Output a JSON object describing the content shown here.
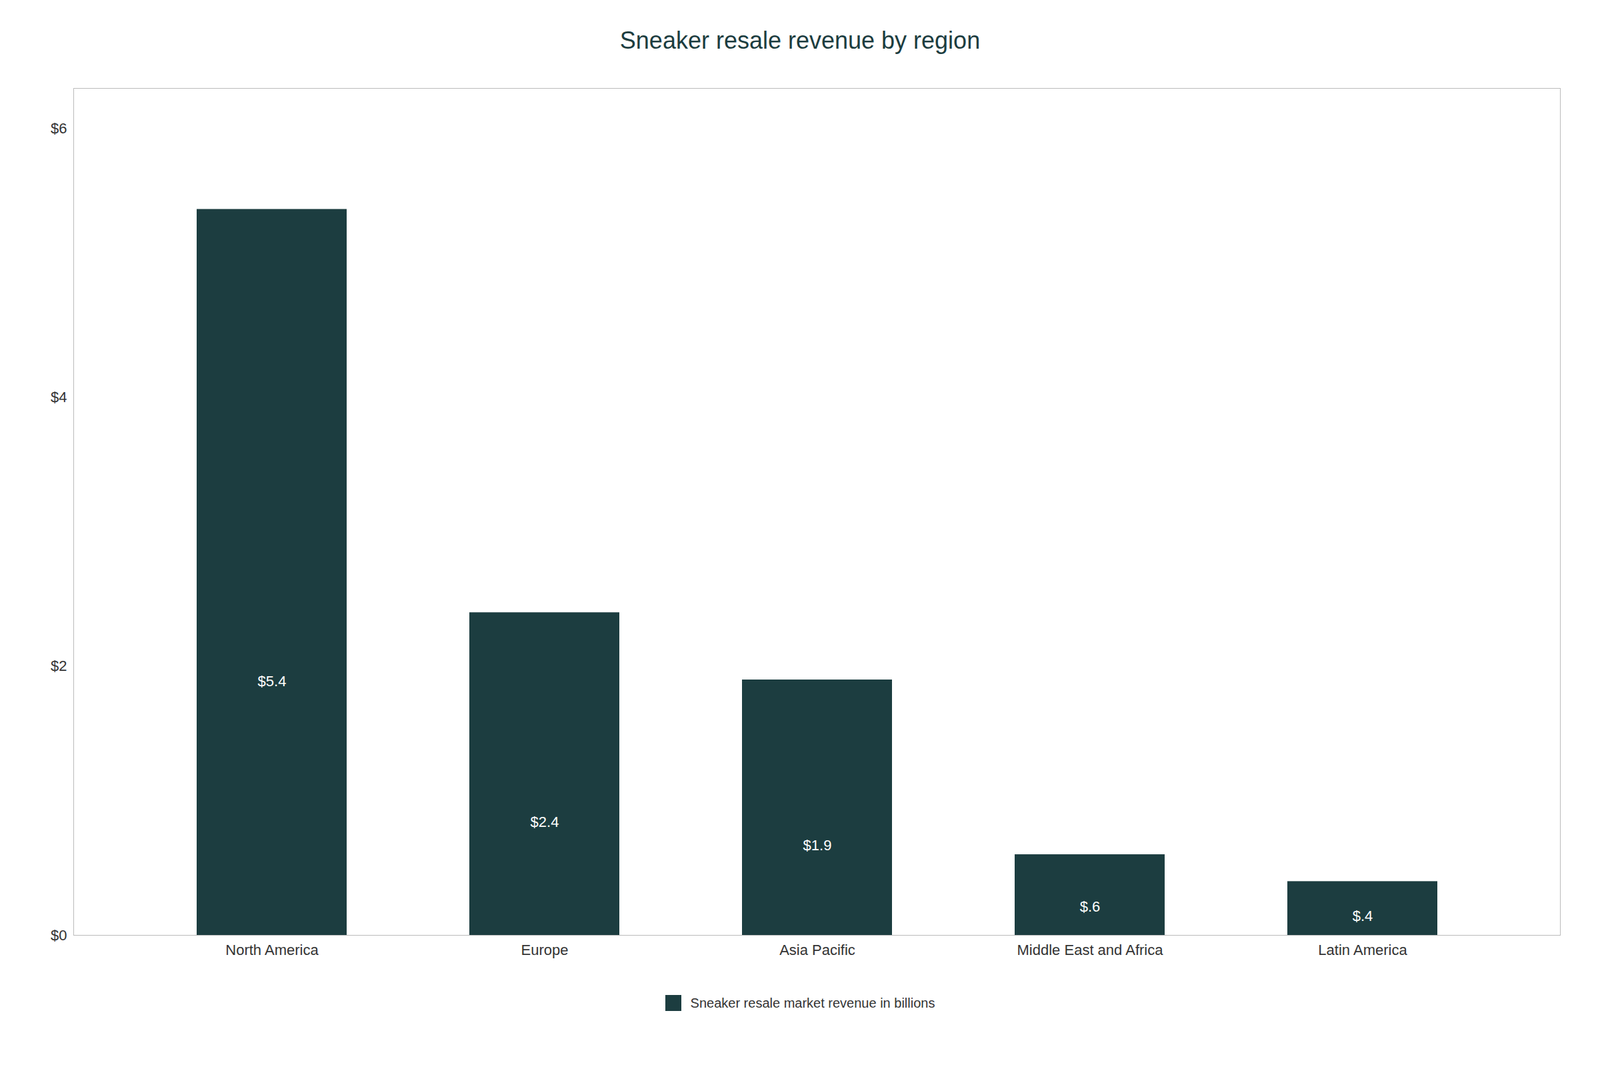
{
  "chart_data": {
    "type": "bar",
    "title": "Sneaker resale revenue by region",
    "categories": [
      "North America",
      "Europe",
      "Asia Pacific",
      "Middle East and Africa",
      "Latin America"
    ],
    "series": [
      {
        "name": "Sneaker resale market revenue in billions",
        "color": "#1c3d40",
        "values": [
          5.4,
          2.4,
          1.9,
          0.6,
          0.4
        ],
        "value_labels": [
          "$5.4",
          "$2.4",
          "$1.9",
          "$.6",
          "$.4"
        ]
      }
    ],
    "ylim": [
      0,
      6.3
    ],
    "yticks": [
      {
        "value": 0,
        "label": "$0"
      },
      {
        "value": 2,
        "label": "$2"
      },
      {
        "value": 4,
        "label": "$4"
      },
      {
        "value": 6,
        "label": "$6"
      }
    ],
    "grid": false,
    "data_labels": true,
    "legend": "bottom"
  }
}
